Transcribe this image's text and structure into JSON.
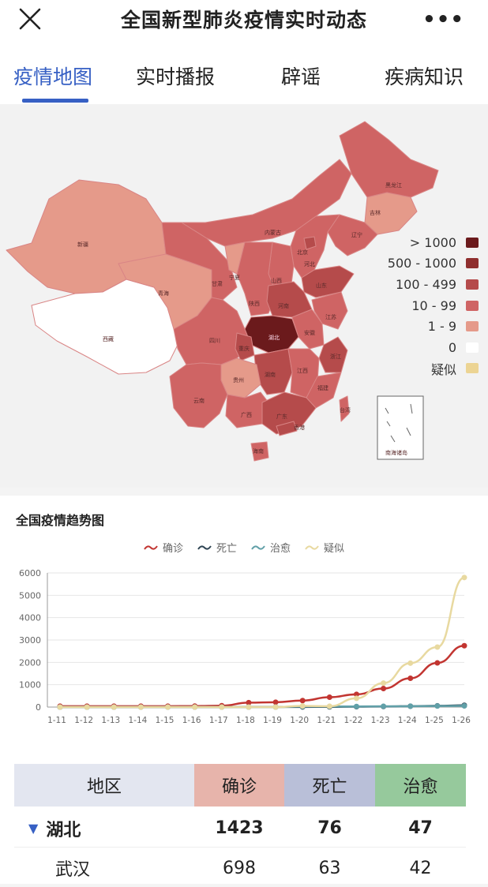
{
  "header": {
    "title": "全国新型肺炎疫情实时动态",
    "more_label": "•••"
  },
  "tabs": [
    {
      "label": "疫情地图",
      "active": true
    },
    {
      "label": "实时播报",
      "active": false
    },
    {
      "label": "辟谣",
      "active": false
    },
    {
      "label": "疾病知识",
      "active": false
    }
  ],
  "map": {
    "legend": [
      {
        "label": "> 1000",
        "color": "#6b1a1c"
      },
      {
        "label": "500 - 1000",
        "color": "#8f2f2e"
      },
      {
        "label": "100 - 499",
        "color": "#b54b4b"
      },
      {
        "label": "10 - 99",
        "color": "#cf6464"
      },
      {
        "label": "1 - 9",
        "color": "#e59a8a"
      },
      {
        "label": "0",
        "color": "#ffffff"
      },
      {
        "label": "疑似",
        "color": "#ecd493"
      }
    ],
    "province_labels": {
      "xinjiang": "新疆",
      "xizang": "西藏",
      "qinghai": "青海",
      "neimenggu": "内蒙古",
      "heilongjiang": "黑龙江",
      "jilin": "吉林",
      "liaoning": "辽宁",
      "beijing": "北京",
      "hebei": "河北",
      "shanxi": "山西",
      "shaanxi": "陕西",
      "ningxia": "宁夏",
      "gansu": "甘肃",
      "shandong": "山东",
      "henan": "河南",
      "jiangsu": "江苏",
      "anhui": "安徽",
      "hubei": "湖北",
      "sichuan": "四川",
      "chongqing": "重庆",
      "hunan": "湖南",
      "jiangxi": "江西",
      "zhejiang": "浙江",
      "guizhou": "贵州",
      "yunnan": "云南",
      "guangxi": "广西",
      "guangdong": "广东",
      "fujian": "福建",
      "hongkong": "香港",
      "hainan": "海南",
      "taiwan": "台湾",
      "nanhai": "南海诸岛"
    }
  },
  "trend": {
    "title": "全国疫情趋势图",
    "chart_data": {
      "type": "line",
      "x": [
        "1-11",
        "1-12",
        "1-13",
        "1-14",
        "1-15",
        "1-16",
        "1-17",
        "1-18",
        "1-19",
        "1-20",
        "1-21",
        "1-22",
        "1-23",
        "1-24",
        "1-25",
        "1-26"
      ],
      "ylim": [
        0,
        6000
      ],
      "yticks": [
        "0",
        "1000",
        "2000",
        "3000",
        "4000",
        "5000",
        "6000"
      ],
      "series": [
        {
          "name": "确诊",
          "color": "#c23531",
          "values": [
            41,
            41,
            41,
            41,
            41,
            45,
            62,
            198,
            218,
            291,
            440,
            571,
            830,
            1287,
            1975,
            2744
          ]
        },
        {
          "name": "死亡",
          "color": "#2f4554",
          "values": [
            1,
            1,
            1,
            2,
            2,
            2,
            2,
            3,
            3,
            6,
            9,
            17,
            25,
            41,
            56,
            80
          ]
        },
        {
          "name": "治愈",
          "color": "#61a0a8",
          "values": [
            0,
            0,
            0,
            0,
            0,
            0,
            0,
            0,
            0,
            25,
            25,
            28,
            34,
            38,
            49,
            51
          ]
        },
        {
          "name": "疑似",
          "color": "#e8d9a0",
          "values": [
            0,
            0,
            0,
            0,
            0,
            0,
            0,
            0,
            0,
            54,
            37,
            393,
            1072,
            1965,
            2684,
            5794
          ]
        }
      ]
    }
  },
  "table": {
    "headers": [
      {
        "label": "地区",
        "bg": "#e3e6f0"
      },
      {
        "label": "确诊",
        "bg": "#e7b4ab"
      },
      {
        "label": "死亡",
        "bg": "#b9bfd8"
      },
      {
        "label": "治愈",
        "bg": "#96c99c"
      }
    ],
    "rows": [
      {
        "region": "湖北",
        "confirmed": "1423",
        "dead": "76",
        "cured": "47",
        "expanded": true
      },
      {
        "region": "武汉",
        "confirmed": "698",
        "dead": "63",
        "cured": "42",
        "expanded": false
      }
    ]
  }
}
